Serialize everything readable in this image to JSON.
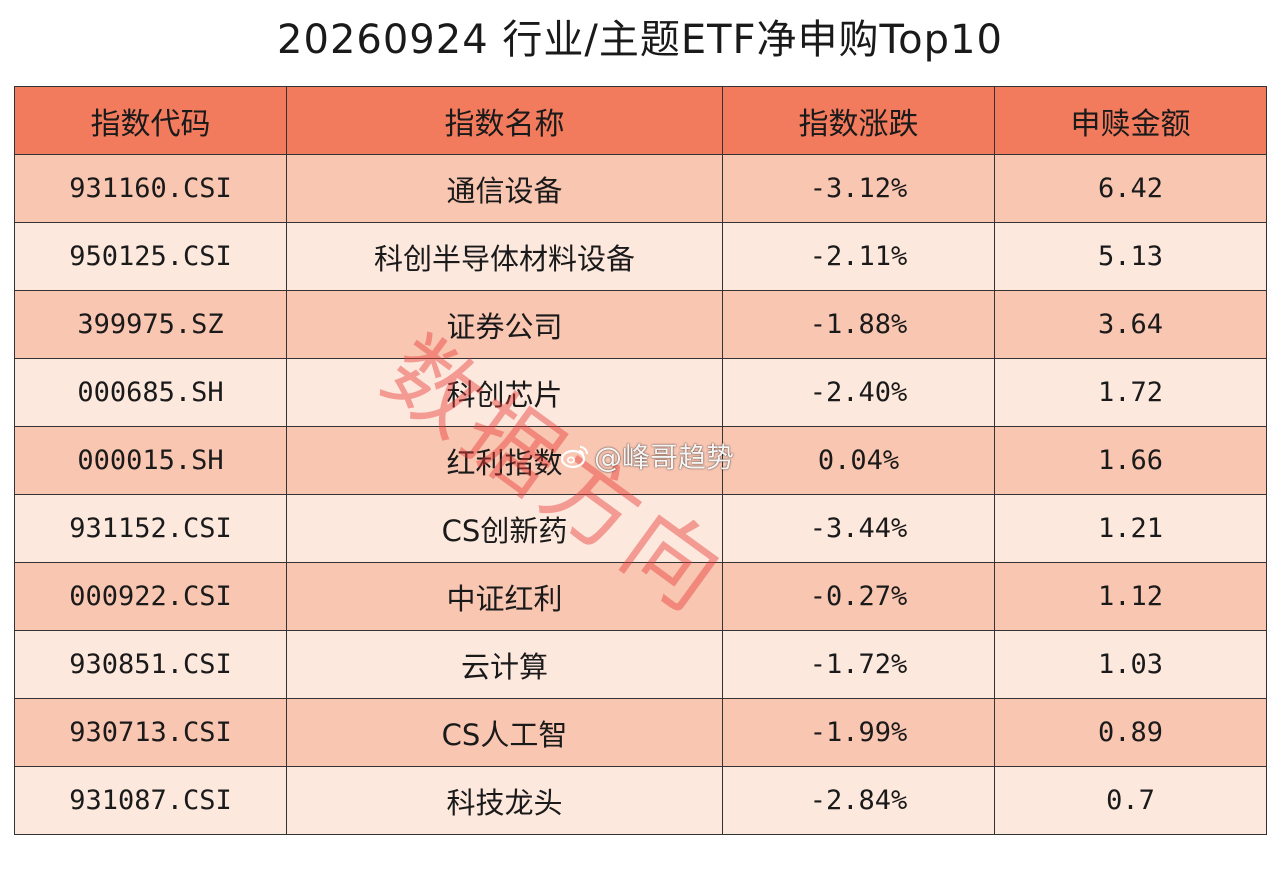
{
  "title": "20260924 行业/主题ETF净申购Top10",
  "table": {
    "headers": [
      "指数代码",
      "指数名称",
      "指数涨跌",
      "申赎金额"
    ],
    "rows": [
      [
        "931160.CSI",
        "通信设备",
        "-3.12%",
        "6.42"
      ],
      [
        "950125.CSI",
        "科创半导体材料设备",
        "-2.11%",
        "5.13"
      ],
      [
        "399975.SZ",
        "证券公司",
        "-1.88%",
        "3.64"
      ],
      [
        "000685.SH",
        "科创芯片",
        "-2.40%",
        "1.72"
      ],
      [
        "000015.SH",
        "红利指数",
        "0.04%",
        "1.66"
      ],
      [
        "931152.CSI",
        "CS创新药",
        "-3.44%",
        "1.21"
      ],
      [
        "000922.CSI",
        "中证红利",
        "-0.27%",
        "1.12"
      ],
      [
        "930851.CSI",
        "云计算",
        "-1.72%",
        "1.03"
      ],
      [
        "930713.CSI",
        "CS人工智",
        "-1.99%",
        "0.89"
      ],
      [
        "931087.CSI",
        "科技龙头",
        "-2.84%",
        "0.7"
      ]
    ]
  },
  "watermark": {
    "text": "数据方向",
    "weibo_handle": "@峰哥趋势",
    "icon": "weibo-icon"
  },
  "colors": {
    "header_bg": "#f27b5e",
    "row_dark": "#f9c6b2",
    "row_light": "#fde8de",
    "watermark": "#e63c37"
  }
}
